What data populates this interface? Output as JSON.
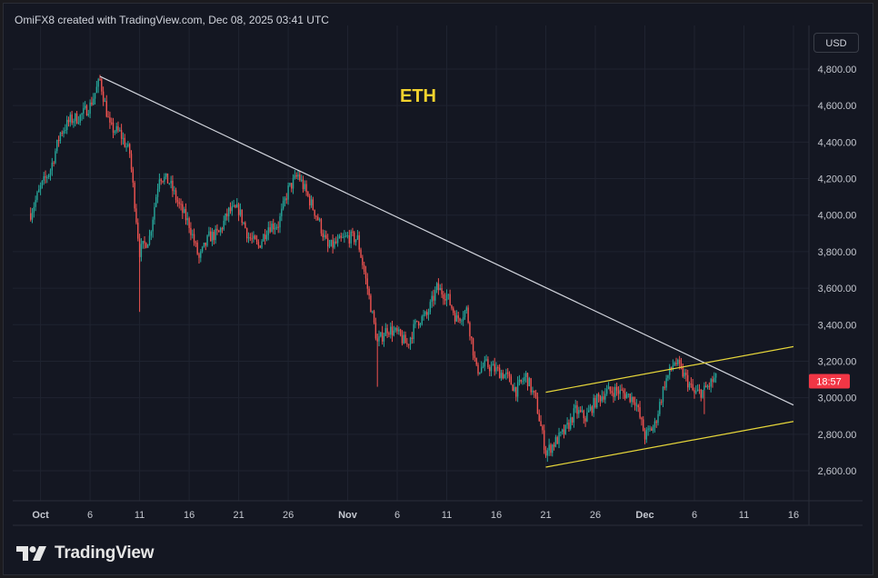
{
  "header": {
    "credit": "OmiFX8 created with TradingView.com, Dec 08, 2025 03:41 UTC"
  },
  "currency_badge": "USD",
  "branding": {
    "logo_text": "TradingView"
  },
  "colors": {
    "background": "#141722",
    "candle_up": "#26a69a",
    "candle_down": "#ef5350",
    "trendline": "#d1d4dc",
    "channel": "#e6d63a",
    "title": "#f2d22e",
    "price_label_bg": "#f23645"
  },
  "chart_data": {
    "type": "candlestick",
    "title": "ETH",
    "currency": "USD",
    "ylim": [
      2450,
      4950
    ],
    "y_ticks": [
      "4,800.00",
      "4,600.00",
      "4,400.00",
      "4,200.00",
      "4,000.00",
      "3,800.00",
      "3,600.00",
      "3,400.00",
      "3,200.00",
      "3,000.00",
      "2,800.00",
      "2,600.00"
    ],
    "x_ticks": [
      {
        "date": "2025-10-01",
        "label": "Oct",
        "bold": true
      },
      {
        "date": "2025-10-06",
        "label": "6"
      },
      {
        "date": "2025-10-11",
        "label": "11"
      },
      {
        "date": "2025-10-16",
        "label": "16"
      },
      {
        "date": "2025-10-21",
        "label": "21"
      },
      {
        "date": "2025-10-26",
        "label": "26"
      },
      {
        "date": "2025-11-01",
        "label": "Nov",
        "bold": true
      },
      {
        "date": "2025-11-06",
        "label": "6"
      },
      {
        "date": "2025-11-11",
        "label": "11"
      },
      {
        "date": "2025-11-16",
        "label": "16"
      },
      {
        "date": "2025-11-21",
        "label": "21"
      },
      {
        "date": "2025-11-26",
        "label": "26"
      },
      {
        "date": "2025-12-01",
        "label": "Dec",
        "bold": true
      },
      {
        "date": "2025-12-06",
        "label": "6"
      },
      {
        "date": "2025-12-11",
        "label": "11"
      },
      {
        "date": "2025-12-16",
        "label": "16"
      }
    ],
    "price_path": [
      [
        "2025-09-30",
        4010
      ],
      [
        "2025-10-01",
        4150
      ],
      [
        "2025-10-02",
        4250
      ],
      [
        "2025-10-03",
        4450
      ],
      [
        "2025-10-04",
        4520
      ],
      [
        "2025-10-05",
        4540
      ],
      [
        "2025-10-06",
        4600
      ],
      [
        "2025-10-07",
        4740
      ],
      [
        "2025-10-08",
        4480
      ],
      [
        "2025-10-09",
        4450
      ],
      [
        "2025-10-10",
        4340
      ],
      [
        "2025-10-11",
        3800
      ],
      [
        "2025-10-12",
        3880
      ],
      [
        "2025-10-13",
        4220
      ],
      [
        "2025-10-14",
        4180
      ],
      [
        "2025-10-15",
        4050
      ],
      [
        "2025-10-16",
        3950
      ],
      [
        "2025-10-17",
        3760
      ],
      [
        "2025-10-18",
        3880
      ],
      [
        "2025-10-19",
        3900
      ],
      [
        "2025-10-20",
        4020
      ],
      [
        "2025-10-21",
        4030
      ],
      [
        "2025-10-22",
        3880
      ],
      [
        "2025-10-23",
        3830
      ],
      [
        "2025-10-24",
        3940
      ],
      [
        "2025-10-25",
        3950
      ],
      [
        "2025-10-26",
        4140
      ],
      [
        "2025-10-27",
        4220
      ],
      [
        "2025-10-28",
        4100
      ],
      [
        "2025-10-29",
        3980
      ],
      [
        "2025-10-30",
        3820
      ],
      [
        "2025-10-31",
        3850
      ],
      [
        "2025-11-01",
        3880
      ],
      [
        "2025-11-02",
        3870
      ],
      [
        "2025-11-03",
        3600
      ],
      [
        "2025-11-04",
        3300
      ],
      [
        "2025-11-05",
        3380
      ],
      [
        "2025-11-06",
        3350
      ],
      [
        "2025-11-07",
        3290
      ],
      [
        "2025-11-08",
        3420
      ],
      [
        "2025-11-09",
        3450
      ],
      [
        "2025-11-10",
        3600
      ],
      [
        "2025-11-11",
        3560
      ],
      [
        "2025-11-12",
        3430
      ],
      [
        "2025-11-13",
        3480
      ],
      [
        "2025-11-14",
        3150
      ],
      [
        "2025-11-15",
        3180
      ],
      [
        "2025-11-16",
        3150
      ],
      [
        "2025-11-17",
        3120
      ],
      [
        "2025-11-18",
        3040
      ],
      [
        "2025-11-19",
        3120
      ],
      [
        "2025-11-20",
        2980
      ],
      [
        "2025-11-21",
        2700
      ],
      [
        "2025-11-22",
        2760
      ],
      [
        "2025-11-23",
        2820
      ],
      [
        "2025-11-24",
        2930
      ],
      [
        "2025-11-25",
        2890
      ],
      [
        "2025-11-26",
        2980
      ],
      [
        "2025-11-27",
        3030
      ],
      [
        "2025-11-28",
        3040
      ],
      [
        "2025-11-29",
        3020
      ],
      [
        "2025-11-30",
        2990
      ],
      [
        "2025-12-01",
        2790
      ],
      [
        "2025-12-02",
        2850
      ],
      [
        "2025-12-03",
        3080
      ],
      [
        "2025-12-04",
        3200
      ],
      [
        "2025-12-05",
        3120
      ],
      [
        "2025-12-06",
        3020
      ],
      [
        "2025-12-07",
        3040
      ],
      [
        "2025-12-08",
        3100
      ]
    ],
    "annotations": {
      "trendline": [
        [
          "2025-10-07",
          4760
        ],
        [
          "2025-12-16",
          2960
        ]
      ],
      "channel_upper": [
        [
          "2025-11-21",
          3030
        ],
        [
          "2025-12-16",
          3280
        ]
      ],
      "channel_lower": [
        [
          "2025-11-21",
          2620
        ],
        [
          "2025-12-16",
          2870
        ]
      ]
    },
    "current_price_label": {
      "price": 3090,
      "text": "18:57"
    }
  }
}
